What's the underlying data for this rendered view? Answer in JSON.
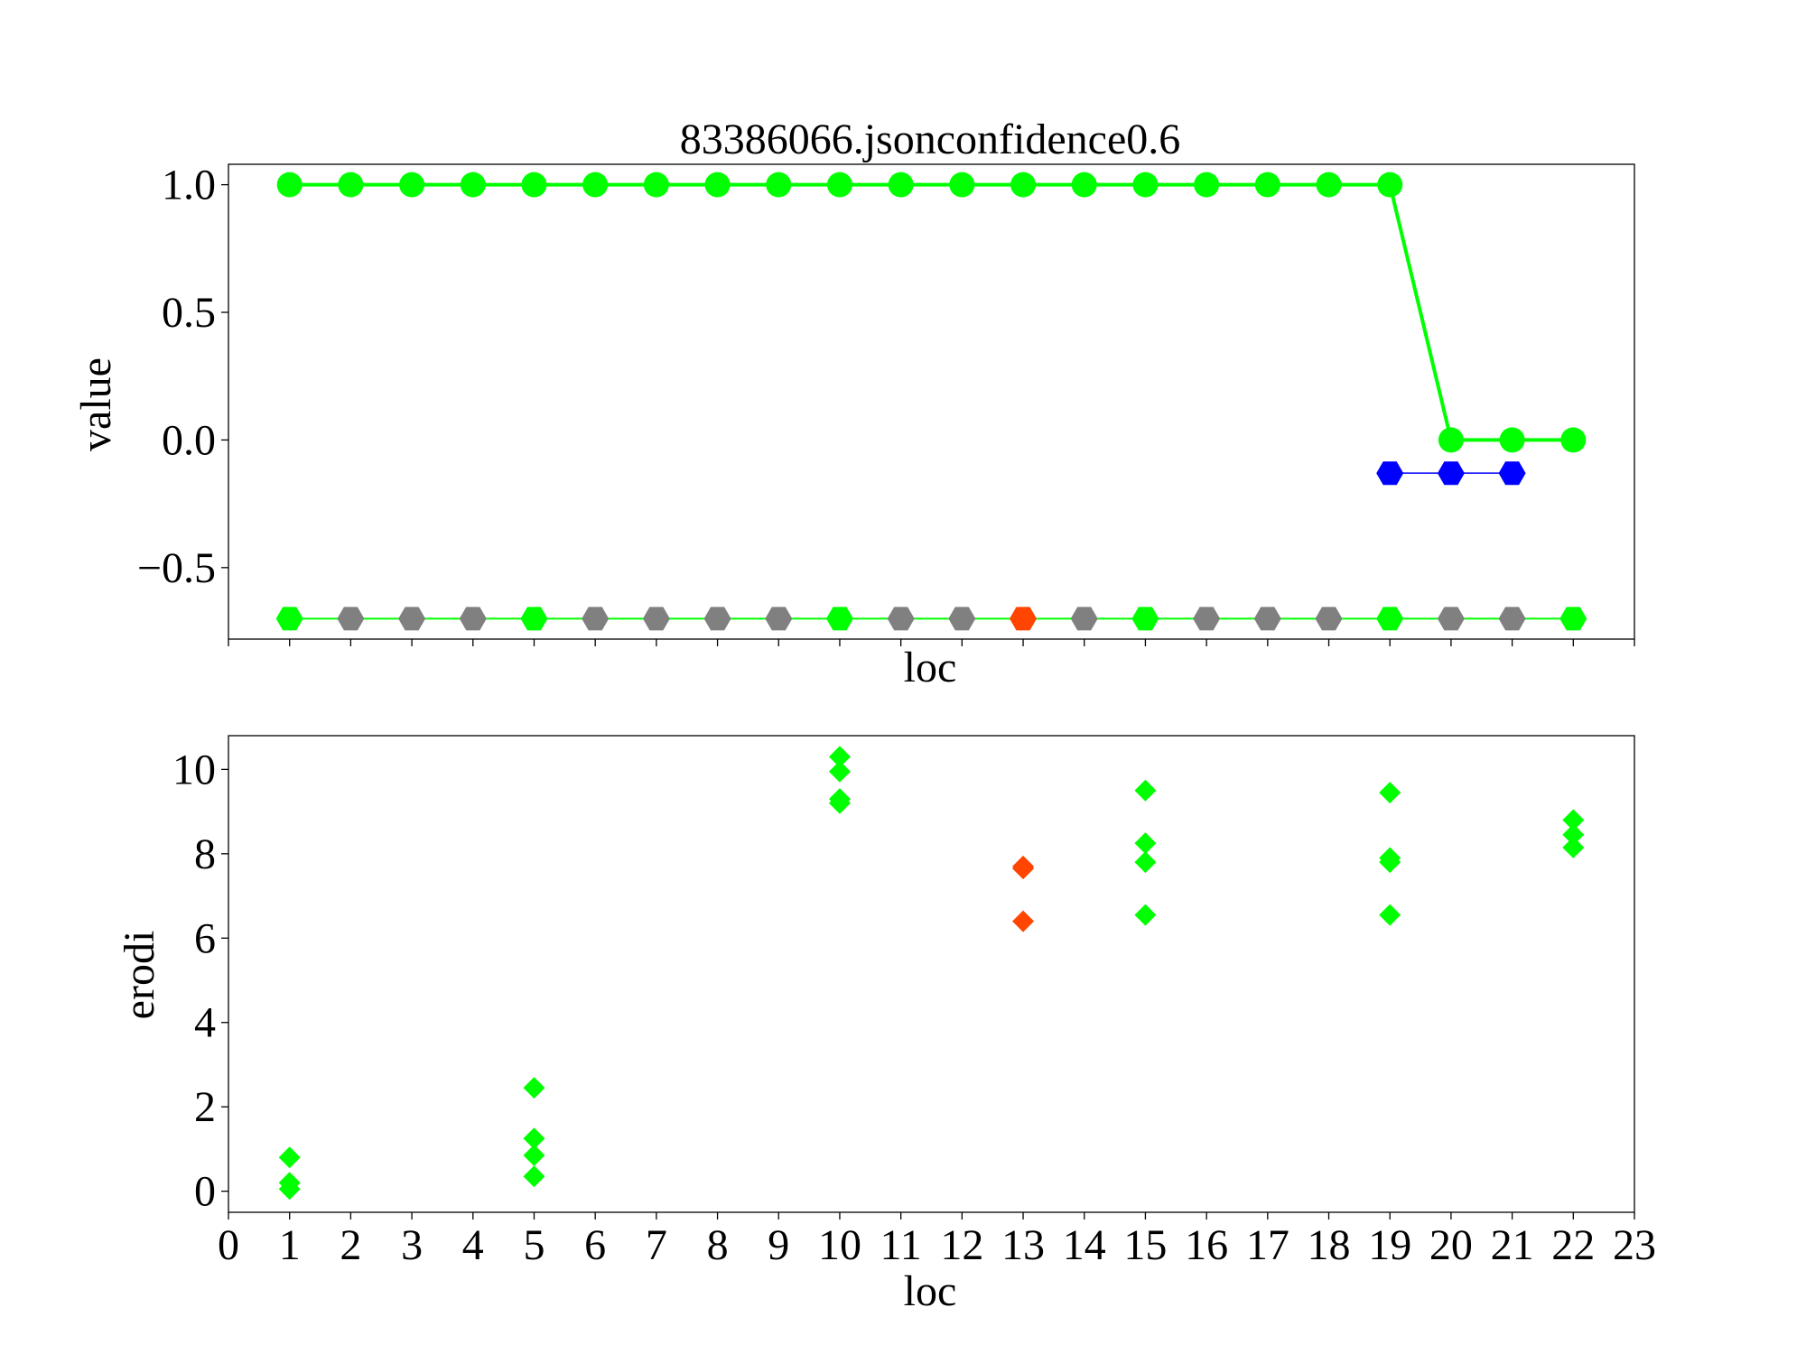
{
  "chart_data": [
    {
      "type": "line",
      "title": "83386066.jsonconfidence0.6",
      "xlabel": "loc",
      "ylabel": "value",
      "xlim": [
        0,
        23
      ],
      "ylim": [
        -0.78,
        1.08
      ],
      "yticks": [
        1.0,
        0.5,
        0.0,
        -0.5
      ],
      "ytick_labels": [
        "1.0",
        "0.5",
        "0.0",
        "−0.5"
      ],
      "grid": false,
      "series": [
        {
          "color": "#00ff00",
          "marker": "circle",
          "x": [
            1,
            2,
            3,
            4,
            5,
            6,
            7,
            8,
            9,
            10,
            11,
            12,
            13,
            14,
            15,
            16,
            17,
            18,
            19,
            20,
            21,
            22
          ],
          "y": [
            1,
            1,
            1,
            1,
            1,
            1,
            1,
            1,
            1,
            1,
            1,
            1,
            1,
            1,
            1,
            1,
            1,
            1,
            1,
            0,
            0,
            0
          ]
        },
        {
          "color": "#0000ff",
          "marker": "hexagon",
          "x": [
            19,
            20,
            21
          ],
          "y": [
            -0.13,
            -0.13,
            -0.13
          ]
        },
        {
          "color": "#00ff00",
          "marker": "hexagon",
          "x": [
            1,
            2,
            3,
            4,
            5,
            6,
            7,
            8,
            9,
            10,
            11,
            12,
            13,
            14,
            15,
            16,
            17,
            18,
            19,
            20,
            21,
            22
          ],
          "y": [
            -0.7,
            -0.7,
            -0.7,
            -0.7,
            -0.7,
            -0.7,
            -0.7,
            -0.7,
            -0.7,
            -0.7,
            -0.7,
            -0.7,
            -0.7,
            -0.7,
            -0.7,
            -0.7,
            -0.7,
            -0.7,
            -0.7,
            -0.7,
            -0.7,
            -0.7
          ],
          "marker_colors": [
            "#00ff00",
            "#808080",
            "#808080",
            "#808080",
            "#00ff00",
            "#808080",
            "#808080",
            "#808080",
            "#808080",
            "#00ff00",
            "#808080",
            "#808080",
            "#ff4500",
            "#808080",
            "#00ff00",
            "#808080",
            "#808080",
            "#808080",
            "#00ff00",
            "#808080",
            "#808080",
            "#00ff00"
          ]
        }
      ]
    },
    {
      "type": "scatter",
      "xlabel": "loc",
      "ylabel": "erodi",
      "xlim": [
        0,
        23
      ],
      "ylim": [
        -0.5,
        10.8
      ],
      "xticks": [
        0,
        1,
        2,
        3,
        4,
        5,
        6,
        7,
        8,
        9,
        10,
        11,
        12,
        13,
        14,
        15,
        16,
        17,
        18,
        19,
        20,
        21,
        22,
        23
      ],
      "yticks": [
        0,
        2,
        4,
        6,
        8,
        10
      ],
      "grid": false,
      "points": [
        {
          "x": 1,
          "y": 0.8,
          "color": "#00ff00"
        },
        {
          "x": 1,
          "y": 0.2,
          "color": "#00ff00"
        },
        {
          "x": 1,
          "y": 0.05,
          "color": "#00ff00"
        },
        {
          "x": 5,
          "y": 2.45,
          "color": "#00ff00"
        },
        {
          "x": 5,
          "y": 1.25,
          "color": "#00ff00"
        },
        {
          "x": 5,
          "y": 0.85,
          "color": "#00ff00"
        },
        {
          "x": 5,
          "y": 0.35,
          "color": "#00ff00"
        },
        {
          "x": 10,
          "y": 10.3,
          "color": "#00ff00"
        },
        {
          "x": 10,
          "y": 9.95,
          "color": "#00ff00"
        },
        {
          "x": 10,
          "y": 9.3,
          "color": "#00ff00"
        },
        {
          "x": 10,
          "y": 9.2,
          "color": "#00ff00"
        },
        {
          "x": 13,
          "y": 7.7,
          "color": "#ff4500"
        },
        {
          "x": 13,
          "y": 7.65,
          "color": "#ff4500"
        },
        {
          "x": 13,
          "y": 6.4,
          "color": "#ff4500"
        },
        {
          "x": 15,
          "y": 9.5,
          "color": "#00ff00"
        },
        {
          "x": 15,
          "y": 8.25,
          "color": "#00ff00"
        },
        {
          "x": 15,
          "y": 7.8,
          "color": "#00ff00"
        },
        {
          "x": 15,
          "y": 6.55,
          "color": "#00ff00"
        },
        {
          "x": 19,
          "y": 9.45,
          "color": "#00ff00"
        },
        {
          "x": 19,
          "y": 7.9,
          "color": "#00ff00"
        },
        {
          "x": 19,
          "y": 7.8,
          "color": "#00ff00"
        },
        {
          "x": 19,
          "y": 6.55,
          "color": "#00ff00"
        },
        {
          "x": 22,
          "y": 8.8,
          "color": "#00ff00"
        },
        {
          "x": 22,
          "y": 8.45,
          "color": "#00ff00"
        },
        {
          "x": 22,
          "y": 8.15,
          "color": "#00ff00"
        }
      ]
    }
  ]
}
